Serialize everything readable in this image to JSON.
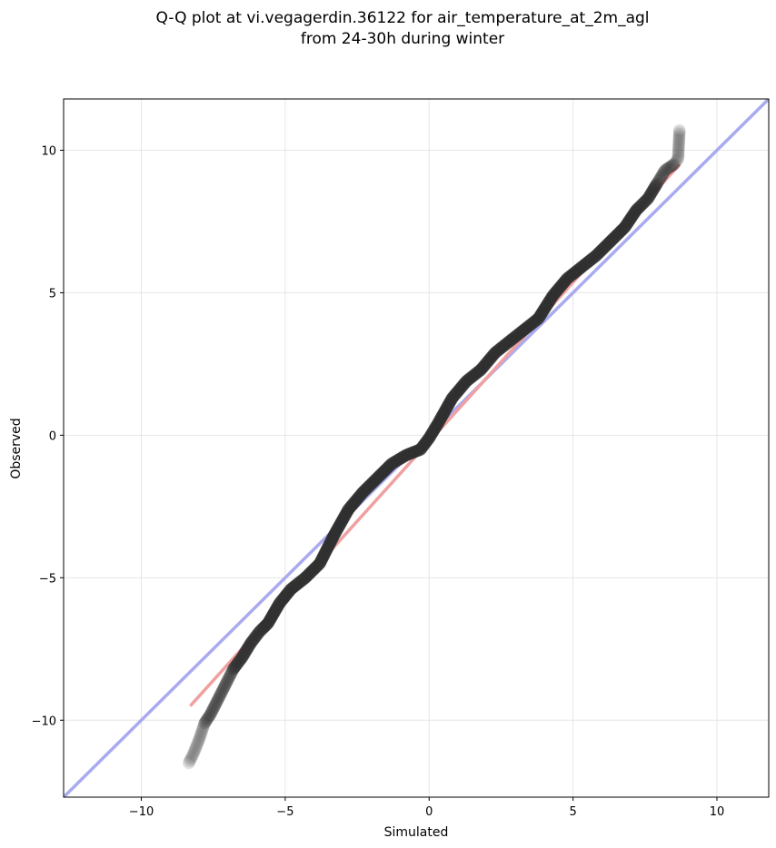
{
  "chart_data": {
    "type": "scatter",
    "title_lines": [
      "Q-Q plot at vi.vegagerdin.36122 for air_temperature_at_2m_agl",
      "from 24-30h during winter"
    ],
    "xlabel": "Simulated",
    "ylabel": "Observed",
    "xlim": [
      -12.7,
      11.8
    ],
    "ylim": [
      -12.7,
      11.8
    ],
    "xticks": [
      -10,
      -5,
      0,
      5,
      10
    ],
    "yticks": [
      -10,
      -5,
      0,
      5,
      10
    ],
    "xtick_labels": [
      "−10",
      "−5",
      "0",
      "5",
      "10"
    ],
    "ytick_labels": [
      "−10",
      "−5",
      "0",
      "5",
      "10"
    ],
    "grid": true,
    "legend": "none",
    "reference_line": {
      "x": [
        -12.7,
        11.8
      ],
      "y": [
        -12.7,
        11.8
      ],
      "color": "#aaaaf0"
    },
    "fit_line": {
      "x": [
        -8.3,
        8.7
      ],
      "y": [
        -9.5,
        9.5
      ],
      "color": "#f0a0a0"
    },
    "central_line_color": "#2a2a8a",
    "central_red_color": "#c03030",
    "point_color": "#333333",
    "quantile_curve": {
      "x": [
        -8.35,
        -8.2,
        -8.0,
        -7.8,
        -7.6,
        -7.4,
        -7.2,
        -7.0,
        -6.8,
        -6.5,
        -6.2,
        -5.9,
        -5.6,
        -5.2,
        -4.8,
        -4.3,
        -3.8,
        -3.3,
        -2.8,
        -2.3,
        -1.8,
        -1.3,
        -0.8,
        -0.3,
        0.0,
        0.3,
        0.8,
        1.3,
        1.8,
        2.3,
        2.8,
        3.3,
        3.8,
        4.3,
        4.8,
        5.3,
        5.8,
        6.3,
        6.8,
        7.2,
        7.6,
        7.9,
        8.2,
        8.5,
        8.65,
        8.7
      ],
      "y": [
        -11.5,
        -11.2,
        -10.7,
        -10.1,
        -9.8,
        -9.4,
        -9.0,
        -8.6,
        -8.2,
        -7.8,
        -7.3,
        -6.9,
        -6.6,
        -5.9,
        -5.4,
        -5.0,
        -4.5,
        -3.5,
        -2.6,
        -2.0,
        -1.5,
        -1.0,
        -0.7,
        -0.5,
        -0.1,
        0.4,
        1.3,
        1.9,
        2.3,
        2.9,
        3.3,
        3.7,
        4.1,
        4.9,
        5.5,
        5.9,
        6.3,
        6.8,
        7.3,
        7.9,
        8.3,
        8.8,
        9.3,
        9.5,
        9.7,
        10.7
      ]
    }
  }
}
